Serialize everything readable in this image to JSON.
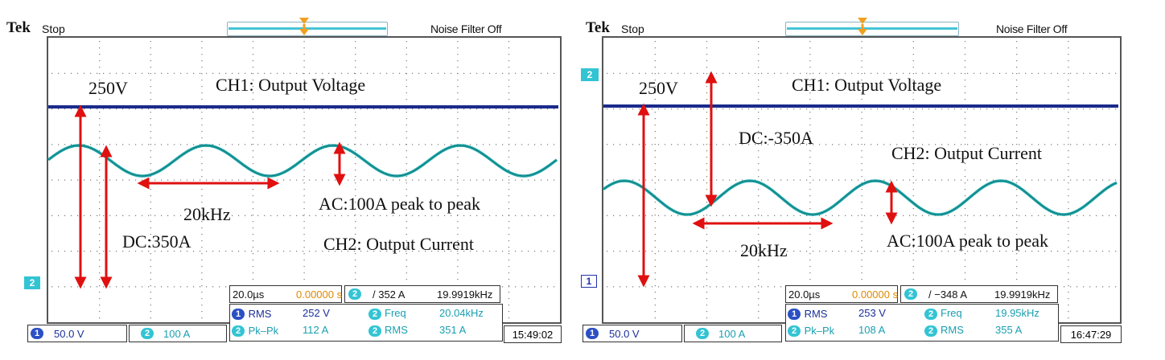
{
  "screens": [
    {
      "id": "left",
      "brand": "Tek",
      "acq_state": "Stop",
      "noise_filter": "Noise Filter Off",
      "annotations": {
        "v_level": "250V",
        "ch1_title": "CH1: Output Voltage",
        "ch2_title": "CH2: Output Current",
        "dc": "DC:350A",
        "freq": "20kHz",
        "ac": "AC:100A peak to peak"
      },
      "horizontal": {
        "timebase": "20.0µs",
        "delay": "0.00000 s"
      },
      "trigger": {
        "channel": "2",
        "level": "/ 352 A",
        "freq": "19.9919kHz"
      },
      "measurements": [
        {
          "ch": "1",
          "name": "RMS",
          "value": "252 V",
          "ch2": "2",
          "name2": "Freq",
          "value2": "20.04kHz"
        },
        {
          "ch": "2",
          "name": "Pk–Pk",
          "value": "112 A",
          "ch2": "2",
          "name2": "RMS",
          "value2": "351 A"
        }
      ],
      "ch1_scale": "50.0 V",
      "ch2_scale": "100 A",
      "ch1_marker": "1",
      "ch2_marker": "2",
      "ch2_level_marker": "2",
      "time": "15:49:02"
    },
    {
      "id": "right",
      "brand": "Tek",
      "acq_state": "Stop",
      "noise_filter": "Noise Filter Off",
      "annotations": {
        "v_level": "250V",
        "ch1_title": "CH1: Output Voltage",
        "ch2_title": "CH2: Output Current",
        "dc": "DC:-350A",
        "freq": "20kHz",
        "ac": "AC:100A peak to peak"
      },
      "horizontal": {
        "timebase": "20.0µs",
        "delay": "0.00000 s"
      },
      "trigger": {
        "channel": "2",
        "level": "/ −348 A",
        "freq": "19.9919kHz"
      },
      "measurements": [
        {
          "ch": "1",
          "name": "RMS",
          "value": "253 V",
          "ch2": "2",
          "name2": "Freq",
          "value2": "19.95kHz"
        },
        {
          "ch": "2",
          "name": "Pk–Pk",
          "value": "108 A",
          "ch2": "2",
          "name2": "RMS",
          "value2": "355 A"
        }
      ],
      "ch1_scale": "50.0 V",
      "ch2_scale": "100 A",
      "ch1_marker": "1",
      "ch2_marker": "2",
      "ch2_level_marker": "2",
      "time": "16:47:29"
    }
  ],
  "colors": {
    "ch1_trace": "#1a2b8c",
    "ch2_trace": "#1fa8a8",
    "annotation_arrow": "#e01010",
    "grid_dots": "#777777"
  },
  "icons": {
    "trigger_position": "orange-t-marker",
    "arrow": "red-double-arrow"
  }
}
